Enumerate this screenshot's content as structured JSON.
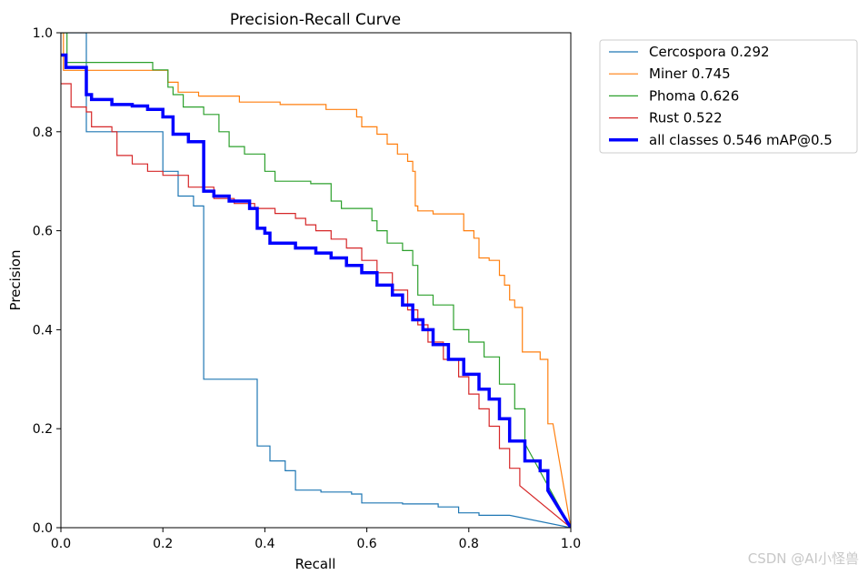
{
  "chart_data": {
    "type": "line",
    "title": "Precision-Recall Curve",
    "xlabel": "Recall",
    "ylabel": "Precision",
    "xlim": [
      0,
      1
    ],
    "ylim": [
      0,
      1
    ],
    "xticks": [
      "0.0",
      "0.2",
      "0.4",
      "0.6",
      "0.8",
      "1.0"
    ],
    "yticks": [
      "0.0",
      "0.2",
      "0.4",
      "0.6",
      "0.8",
      "1.0"
    ],
    "grid": false,
    "legend_position": "outside-top-right",
    "series": [
      {
        "name": "Cercospora 0.292",
        "color": "#1f77b4",
        "width": 1.2,
        "points": [
          [
            0,
            1.0
          ],
          [
            0.05,
            1.0
          ],
          [
            0.05,
            0.8
          ],
          [
            0.2,
            0.8
          ],
          [
            0.2,
            0.72
          ],
          [
            0.23,
            0.72
          ],
          [
            0.23,
            0.67
          ],
          [
            0.26,
            0.67
          ],
          [
            0.26,
            0.65
          ],
          [
            0.28,
            0.65
          ],
          [
            0.28,
            0.3
          ],
          [
            0.385,
            0.3
          ],
          [
            0.385,
            0.165
          ],
          [
            0.41,
            0.165
          ],
          [
            0.41,
            0.135
          ],
          [
            0.44,
            0.135
          ],
          [
            0.44,
            0.115
          ],
          [
            0.46,
            0.115
          ],
          [
            0.46,
            0.076
          ],
          [
            0.51,
            0.076
          ],
          [
            0.51,
            0.072
          ],
          [
            0.57,
            0.072
          ],
          [
            0.57,
            0.068
          ],
          [
            0.59,
            0.068
          ],
          [
            0.59,
            0.05
          ],
          [
            0.67,
            0.05
          ],
          [
            0.67,
            0.048
          ],
          [
            0.74,
            0.048
          ],
          [
            0.74,
            0.042
          ],
          [
            0.78,
            0.042
          ],
          [
            0.78,
            0.03
          ],
          [
            0.82,
            0.03
          ],
          [
            0.82,
            0.025
          ],
          [
            0.88,
            0.025
          ],
          [
            1.0,
            0.0
          ]
        ]
      },
      {
        "name": "Miner 0.745",
        "color": "#ff7f0e",
        "width": 1.2,
        "points": [
          [
            0,
            1.0
          ],
          [
            0.005,
            1.0
          ],
          [
            0.005,
            0.924
          ],
          [
            0.21,
            0.924
          ],
          [
            0.21,
            0.9
          ],
          [
            0.23,
            0.9
          ],
          [
            0.23,
            0.88
          ],
          [
            0.27,
            0.88
          ],
          [
            0.27,
            0.872
          ],
          [
            0.35,
            0.872
          ],
          [
            0.35,
            0.86
          ],
          [
            0.43,
            0.86
          ],
          [
            0.43,
            0.855
          ],
          [
            0.52,
            0.855
          ],
          [
            0.52,
            0.845
          ],
          [
            0.58,
            0.845
          ],
          [
            0.58,
            0.83
          ],
          [
            0.59,
            0.83
          ],
          [
            0.59,
            0.81
          ],
          [
            0.62,
            0.81
          ],
          [
            0.62,
            0.795
          ],
          [
            0.64,
            0.795
          ],
          [
            0.64,
            0.775
          ],
          [
            0.66,
            0.775
          ],
          [
            0.66,
            0.755
          ],
          [
            0.68,
            0.755
          ],
          [
            0.68,
            0.74
          ],
          [
            0.69,
            0.74
          ],
          [
            0.69,
            0.72
          ],
          [
            0.695,
            0.72
          ],
          [
            0.695,
            0.65
          ],
          [
            0.7,
            0.65
          ],
          [
            0.7,
            0.64
          ],
          [
            0.73,
            0.64
          ],
          [
            0.73,
            0.634
          ],
          [
            0.79,
            0.634
          ],
          [
            0.79,
            0.6
          ],
          [
            0.81,
            0.6
          ],
          [
            0.81,
            0.585
          ],
          [
            0.82,
            0.585
          ],
          [
            0.82,
            0.545
          ],
          [
            0.84,
            0.545
          ],
          [
            0.84,
            0.54
          ],
          [
            0.86,
            0.54
          ],
          [
            0.86,
            0.51
          ],
          [
            0.87,
            0.51
          ],
          [
            0.87,
            0.49
          ],
          [
            0.88,
            0.49
          ],
          [
            0.88,
            0.46
          ],
          [
            0.89,
            0.46
          ],
          [
            0.89,
            0.445
          ],
          [
            0.905,
            0.445
          ],
          [
            0.905,
            0.355
          ],
          [
            0.94,
            0.355
          ],
          [
            0.94,
            0.34
          ],
          [
            0.955,
            0.34
          ],
          [
            0.955,
            0.21
          ],
          [
            0.965,
            0.21
          ],
          [
            1.0,
            0.0
          ]
        ]
      },
      {
        "name": "Phoma 0.626",
        "color": "#2ca02c",
        "width": 1.2,
        "points": [
          [
            0,
            1.0
          ],
          [
            0.012,
            1.0
          ],
          [
            0.012,
            0.94
          ],
          [
            0.18,
            0.94
          ],
          [
            0.18,
            0.925
          ],
          [
            0.21,
            0.925
          ],
          [
            0.21,
            0.89
          ],
          [
            0.22,
            0.89
          ],
          [
            0.22,
            0.875
          ],
          [
            0.24,
            0.875
          ],
          [
            0.24,
            0.85
          ],
          [
            0.28,
            0.85
          ],
          [
            0.28,
            0.835
          ],
          [
            0.31,
            0.835
          ],
          [
            0.31,
            0.8
          ],
          [
            0.33,
            0.8
          ],
          [
            0.33,
            0.77
          ],
          [
            0.36,
            0.77
          ],
          [
            0.36,
            0.755
          ],
          [
            0.4,
            0.755
          ],
          [
            0.4,
            0.72
          ],
          [
            0.42,
            0.72
          ],
          [
            0.42,
            0.7
          ],
          [
            0.49,
            0.7
          ],
          [
            0.49,
            0.695
          ],
          [
            0.53,
            0.695
          ],
          [
            0.53,
            0.66
          ],
          [
            0.55,
            0.66
          ],
          [
            0.55,
            0.645
          ],
          [
            0.61,
            0.645
          ],
          [
            0.61,
            0.62
          ],
          [
            0.62,
            0.62
          ],
          [
            0.62,
            0.6
          ],
          [
            0.64,
            0.6
          ],
          [
            0.64,
            0.575
          ],
          [
            0.67,
            0.575
          ],
          [
            0.67,
            0.56
          ],
          [
            0.69,
            0.56
          ],
          [
            0.69,
            0.53
          ],
          [
            0.7,
            0.53
          ],
          [
            0.7,
            0.47
          ],
          [
            0.73,
            0.47
          ],
          [
            0.73,
            0.45
          ],
          [
            0.77,
            0.45
          ],
          [
            0.77,
            0.4
          ],
          [
            0.8,
            0.4
          ],
          [
            0.8,
            0.375
          ],
          [
            0.83,
            0.375
          ],
          [
            0.83,
            0.345
          ],
          [
            0.86,
            0.345
          ],
          [
            0.86,
            0.29
          ],
          [
            0.89,
            0.29
          ],
          [
            0.89,
            0.24
          ],
          [
            0.91,
            0.24
          ],
          [
            0.91,
            0.17
          ],
          [
            1.0,
            0.0
          ]
        ]
      },
      {
        "name": "Rust 0.522",
        "color": "#d62728",
        "width": 1.2,
        "points": [
          [
            0,
            0.897
          ],
          [
            0.02,
            0.897
          ],
          [
            0.02,
            0.85
          ],
          [
            0.05,
            0.85
          ],
          [
            0.05,
            0.84
          ],
          [
            0.06,
            0.84
          ],
          [
            0.06,
            0.81
          ],
          [
            0.1,
            0.81
          ],
          [
            0.1,
            0.8
          ],
          [
            0.11,
            0.8
          ],
          [
            0.11,
            0.752
          ],
          [
            0.14,
            0.752
          ],
          [
            0.14,
            0.735
          ],
          [
            0.17,
            0.735
          ],
          [
            0.17,
            0.72
          ],
          [
            0.2,
            0.72
          ],
          [
            0.2,
            0.712
          ],
          [
            0.25,
            0.712
          ],
          [
            0.25,
            0.688
          ],
          [
            0.3,
            0.688
          ],
          [
            0.3,
            0.665
          ],
          [
            0.34,
            0.665
          ],
          [
            0.34,
            0.655
          ],
          [
            0.38,
            0.655
          ],
          [
            0.38,
            0.645
          ],
          [
            0.42,
            0.645
          ],
          [
            0.42,
            0.635
          ],
          [
            0.46,
            0.635
          ],
          [
            0.46,
            0.625
          ],
          [
            0.48,
            0.625
          ],
          [
            0.48,
            0.612
          ],
          [
            0.5,
            0.612
          ],
          [
            0.5,
            0.6
          ],
          [
            0.53,
            0.6
          ],
          [
            0.53,
            0.583
          ],
          [
            0.56,
            0.583
          ],
          [
            0.56,
            0.565
          ],
          [
            0.59,
            0.565
          ],
          [
            0.59,
            0.54
          ],
          [
            0.62,
            0.54
          ],
          [
            0.62,
            0.515
          ],
          [
            0.65,
            0.515
          ],
          [
            0.65,
            0.48
          ],
          [
            0.68,
            0.48
          ],
          [
            0.68,
            0.44
          ],
          [
            0.7,
            0.44
          ],
          [
            0.7,
            0.41
          ],
          [
            0.72,
            0.41
          ],
          [
            0.72,
            0.375
          ],
          [
            0.75,
            0.375
          ],
          [
            0.75,
            0.34
          ],
          [
            0.78,
            0.34
          ],
          [
            0.78,
            0.305
          ],
          [
            0.8,
            0.305
          ],
          [
            0.8,
            0.27
          ],
          [
            0.82,
            0.27
          ],
          [
            0.82,
            0.24
          ],
          [
            0.84,
            0.24
          ],
          [
            0.84,
            0.205
          ],
          [
            0.86,
            0.205
          ],
          [
            0.86,
            0.16
          ],
          [
            0.88,
            0.16
          ],
          [
            0.88,
            0.12
          ],
          [
            0.9,
            0.12
          ],
          [
            0.9,
            0.085
          ],
          [
            1.0,
            0.0
          ]
        ]
      },
      {
        "name": "all classes 0.546 mAP@0.5",
        "color": "#0000ff",
        "width": 3.5,
        "points": [
          [
            0,
            0.955
          ],
          [
            0.01,
            0.955
          ],
          [
            0.01,
            0.93
          ],
          [
            0.05,
            0.93
          ],
          [
            0.05,
            0.875
          ],
          [
            0.06,
            0.875
          ],
          [
            0.06,
            0.865
          ],
          [
            0.1,
            0.865
          ],
          [
            0.1,
            0.855
          ],
          [
            0.14,
            0.855
          ],
          [
            0.14,
            0.852
          ],
          [
            0.17,
            0.852
          ],
          [
            0.17,
            0.845
          ],
          [
            0.2,
            0.845
          ],
          [
            0.2,
            0.83
          ],
          [
            0.22,
            0.83
          ],
          [
            0.22,
            0.795
          ],
          [
            0.25,
            0.795
          ],
          [
            0.25,
            0.78
          ],
          [
            0.28,
            0.78
          ],
          [
            0.28,
            0.68
          ],
          [
            0.3,
            0.68
          ],
          [
            0.3,
            0.67
          ],
          [
            0.33,
            0.67
          ],
          [
            0.33,
            0.66
          ],
          [
            0.37,
            0.66
          ],
          [
            0.37,
            0.645
          ],
          [
            0.385,
            0.645
          ],
          [
            0.385,
            0.605
          ],
          [
            0.4,
            0.605
          ],
          [
            0.4,
            0.595
          ],
          [
            0.41,
            0.595
          ],
          [
            0.41,
            0.575
          ],
          [
            0.46,
            0.575
          ],
          [
            0.46,
            0.565
          ],
          [
            0.5,
            0.565
          ],
          [
            0.5,
            0.555
          ],
          [
            0.53,
            0.555
          ],
          [
            0.53,
            0.545
          ],
          [
            0.56,
            0.545
          ],
          [
            0.56,
            0.53
          ],
          [
            0.59,
            0.53
          ],
          [
            0.59,
            0.515
          ],
          [
            0.62,
            0.515
          ],
          [
            0.62,
            0.49
          ],
          [
            0.65,
            0.49
          ],
          [
            0.65,
            0.47
          ],
          [
            0.67,
            0.47
          ],
          [
            0.67,
            0.45
          ],
          [
            0.69,
            0.45
          ],
          [
            0.69,
            0.42
          ],
          [
            0.71,
            0.42
          ],
          [
            0.71,
            0.4
          ],
          [
            0.73,
            0.4
          ],
          [
            0.73,
            0.37
          ],
          [
            0.76,
            0.37
          ],
          [
            0.76,
            0.34
          ],
          [
            0.79,
            0.34
          ],
          [
            0.79,
            0.31
          ],
          [
            0.82,
            0.31
          ],
          [
            0.82,
            0.28
          ],
          [
            0.84,
            0.28
          ],
          [
            0.84,
            0.26
          ],
          [
            0.86,
            0.26
          ],
          [
            0.86,
            0.22
          ],
          [
            0.88,
            0.22
          ],
          [
            0.88,
            0.175
          ],
          [
            0.91,
            0.175
          ],
          [
            0.91,
            0.135
          ],
          [
            0.94,
            0.135
          ],
          [
            0.94,
            0.115
          ],
          [
            0.955,
            0.115
          ],
          [
            0.955,
            0.075
          ],
          [
            1.0,
            0.0
          ]
        ]
      }
    ]
  },
  "watermark": "CSDN @AI小怪兽"
}
